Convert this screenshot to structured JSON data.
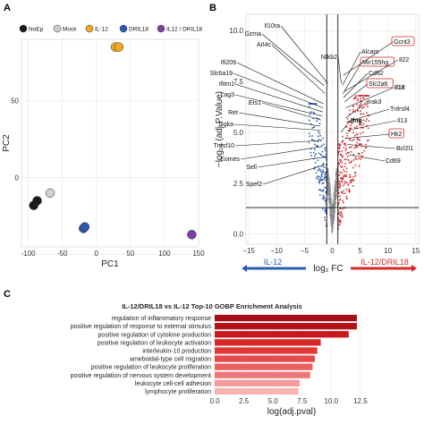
{
  "panels": {
    "a": "A",
    "b": "B",
    "c": "C"
  },
  "chart_data": [
    {
      "type": "scatter",
      "title": "",
      "xlabel": "PC1",
      "ylabel": "PC2",
      "xlim": [
        -110,
        150
      ],
      "ylim": [
        -45,
        90
      ],
      "x_ticks": [
        -100,
        -50,
        0,
        50,
        100,
        150
      ],
      "y_ticks": [
        -50,
        0,
        50
      ],
      "x_tick_labels": [
        "-100",
        "-50",
        "0",
        "50",
        "100",
        "150"
      ],
      "y_tick_labels": [
        "",
        "0",
        "50"
      ],
      "grid": true,
      "legend_position": "top",
      "series": [
        {
          "name": "NoEp",
          "color": "#1a1a1a",
          "points": [
            [
              -92,
              -18
            ],
            [
              -87,
              -15
            ]
          ]
        },
        {
          "name": "Mock",
          "color": "#cfcfcf",
          "points": [
            [
              -68,
              -10
            ]
          ]
        },
        {
          "name": "IL-12",
          "color": "#f2a623",
          "points": [
            [
              28,
              85
            ],
            [
              33,
              85
            ]
          ]
        },
        {
          "name": "DRIL18",
          "color": "#2b58b6",
          "points": [
            [
              -19,
              -33
            ],
            [
              -17,
              -32
            ]
          ]
        },
        {
          "name": "IL12 / DRIL18",
          "color": "#7b3fa0",
          "points": [
            [
              140,
              -37
            ]
          ]
        }
      ]
    },
    {
      "type": "scatter",
      "title": "",
      "xlabel": "log₂ FC",
      "ylabel": "−log₁₀ (adj.P.Value)",
      "xlim": [
        -15.5,
        15.5
      ],
      "ylim": [
        -0.5,
        10.8
      ],
      "x_ticks": [
        -15,
        -10,
        -5,
        0,
        5,
        10,
        15
      ],
      "y_ticks": [
        0,
        2.5,
        5,
        7.5,
        10
      ],
      "x_tick_labels": [
        "−15",
        "−10",
        "−5",
        "0",
        "5",
        "10",
        "15"
      ],
      "y_tick_labels": [
        "0.0",
        "2.5",
        "5.0",
        "7.5",
        "10.0"
      ],
      "grid": true,
      "vlines": [
        -1,
        1
      ],
      "hline": 1.3,
      "left_arrow_label": "IL-12",
      "right_arrow_label": "IL-12/DRIL18",
      "colors": {
        "down": "#2a5db0",
        "up": "#d42a2a",
        "ns": "#8c8c8c"
      },
      "annotations": [
        {
          "label": "Il10ra",
          "x": -0.8,
          "y": 7.4,
          "bold": false,
          "boxed": false
        },
        {
          "label": "Gzma",
          "x": -1.5,
          "y": 7.3,
          "bold": false,
          "boxed": false
        },
        {
          "label": "Arl4c",
          "x": -1.3,
          "y": 6.9,
          "bold": false,
          "boxed": false
        },
        {
          "label": "Ifi209",
          "x": -1.6,
          "y": 6.4,
          "bold": false,
          "boxed": false
        },
        {
          "label": "Slc6a19",
          "x": -1.6,
          "y": 6.2,
          "bold": false,
          "boxed": false
        },
        {
          "label": "Ifitm1",
          "x": -1.7,
          "y": 6.0,
          "bold": false,
          "boxed": false
        },
        {
          "label": "Lag3",
          "x": -1.8,
          "y": 5.8,
          "bold": false,
          "boxed": false
        },
        {
          "label": "Ets1",
          "x": -2.0,
          "y": 5.6,
          "bold": false,
          "boxed": false
        },
        {
          "label": "Ret",
          "x": -2.2,
          "y": 5.3,
          "bold": false,
          "boxed": false
        },
        {
          "label": "Dgka",
          "x": -2.1,
          "y": 5.1,
          "bold": false,
          "boxed": false
        },
        {
          "label": "Tnfsf10",
          "x": -2.0,
          "y": 4.6,
          "bold": false,
          "boxed": false
        },
        {
          "label": "Eomes",
          "x": -1.8,
          "y": 4.3,
          "bold": false,
          "boxed": false
        },
        {
          "label": "Sell",
          "x": -1.2,
          "y": 3.8,
          "bold": false,
          "boxed": false
        },
        {
          "label": "Spef2",
          "x": -1.4,
          "y": 3.4,
          "bold": false,
          "boxed": false
        },
        {
          "label": "Nfkb2",
          "x": 1.6,
          "y": 7.4,
          "bold": false,
          "boxed": false
        },
        {
          "label": "Alcam",
          "x": 1.8,
          "y": 7.3,
          "bold": false,
          "boxed": false
        },
        {
          "label": "Gcnt3",
          "x": 2.0,
          "y": 7.8,
          "bold": false,
          "boxed": true
        },
        {
          "label": "Il22",
          "x": 2.1,
          "y": 7.0,
          "bold": false,
          "boxed": false
        },
        {
          "label": "Mir155hg",
          "x": 1.9,
          "y": 6.9,
          "bold": false,
          "boxed": true
        },
        {
          "label": "Cd82",
          "x": 2.0,
          "y": 6.7,
          "bold": false,
          "boxed": false
        },
        {
          "label": "Slc2a6",
          "x": 2.2,
          "y": 6.5,
          "bold": false,
          "boxed": true
        },
        {
          "label": "Il18",
          "x": 2.4,
          "y": 6.2,
          "bold": true,
          "boxed": false
        },
        {
          "label": "Irak3",
          "x": 2.4,
          "y": 5.7,
          "bold": false,
          "boxed": false
        },
        {
          "label": "Tnfrsf4",
          "x": 2.5,
          "y": 5.5,
          "bold": false,
          "boxed": false
        },
        {
          "label": "Ifng",
          "x": 1.6,
          "y": 5.0,
          "bold": true,
          "boxed": false
        },
        {
          "label": "Il13",
          "x": 2.6,
          "y": 5.1,
          "bold": false,
          "boxed": false
        },
        {
          "label": "Hk2",
          "x": 2.3,
          "y": 4.7,
          "bold": false,
          "boxed": true
        },
        {
          "label": "Bcl2l1",
          "x": 2.7,
          "y": 4.4,
          "bold": false,
          "boxed": false
        },
        {
          "label": "Cd69",
          "x": 2.9,
          "y": 3.9,
          "bold": false,
          "boxed": false
        }
      ]
    },
    {
      "type": "bar",
      "orientation": "horizontal",
      "title": "IL-12/DRIL18 vs IL-12 Top-10 GOBP Enrichment Analysis",
      "xlabel": "log(adj.pval)",
      "ylabel": "",
      "xlim": [
        0,
        13.2
      ],
      "x_ticks": [
        0,
        2.5,
        5,
        7.5,
        10,
        12.5
      ],
      "x_tick_labels": [
        "0.0",
        "2.5",
        "5.0",
        "7.5",
        "10.0",
        "12.5"
      ],
      "grid": true,
      "categories": [
        "regulation of inflammatory response",
        "positive regulation of response to external stimulus",
        "positive regulation of cytokine production",
        "positive regulation of leukocyte activation",
        "interleukin-10 production",
        "ameboidal-type cell migration",
        "positive regulation of leukocyte proliferation",
        "positive regulation of nervous system development",
        "leukocyte cell-cell adhesion",
        "lymphocyte proliferation"
      ],
      "values": [
        12.2,
        12.2,
        11.5,
        9.1,
        8.8,
        8.6,
        8.4,
        8.2,
        7.3,
        7.2
      ],
      "colors": [
        "#a50f15",
        "#b51119",
        "#c8171e",
        "#d92626",
        "#e03838",
        "#e64a4a",
        "#ec5f5f",
        "#f07777",
        "#f49a9a",
        "#f7b4b4"
      ]
    }
  ]
}
